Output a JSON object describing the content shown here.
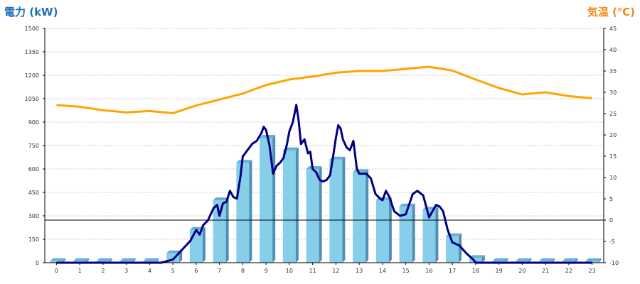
{
  "chart_data": {
    "type": "bar+line",
    "left_axis": {
      "label": "電力 (kW)",
      "min": 0,
      "max": 1500,
      "ticks": [
        0,
        150,
        300,
        450,
        600,
        750,
        900,
        1050,
        1200,
        1350,
        1500
      ]
    },
    "right_axis": {
      "label": "気温 (℃)",
      "min": -10,
      "max": 45,
      "ticks": [
        -10,
        -5,
        0,
        5,
        10,
        15,
        20,
        25,
        30,
        35,
        40,
        45
      ]
    },
    "x_categories": [
      "0",
      "1",
      "2",
      "3",
      "4",
      "5",
      "6",
      "7",
      "8",
      "9",
      "10",
      "11",
      "12",
      "13",
      "14",
      "15",
      "16",
      "17",
      "18",
      "19",
      "20",
      "21",
      "22",
      "23"
    ],
    "grid": true,
    "bars": {
      "axis": "left",
      "color": "#87ceeb",
      "values": [
        10,
        10,
        10,
        10,
        10,
        60,
        210,
        400,
        640,
        800,
        720,
        600,
        660,
        580,
        400,
        360,
        340,
        170,
        30,
        10,
        10,
        10,
        10,
        10
      ]
    },
    "power_line": {
      "axis": "left",
      "color": "#000080",
      "points": [
        [
          0,
          0
        ],
        [
          1,
          0
        ],
        [
          2,
          0
        ],
        [
          3,
          0
        ],
        [
          4,
          0
        ],
        [
          4.5,
          0
        ],
        [
          5,
          20
        ],
        [
          5.25,
          60
        ],
        [
          5.5,
          100
        ],
        [
          5.75,
          140
        ],
        [
          6,
          210
        ],
        [
          6.15,
          180
        ],
        [
          6.3,
          240
        ],
        [
          6.5,
          270
        ],
        [
          6.75,
          350
        ],
        [
          6.9,
          370
        ],
        [
          7,
          300
        ],
        [
          7.15,
          380
        ],
        [
          7.3,
          390
        ],
        [
          7.45,
          460
        ],
        [
          7.6,
          420
        ],
        [
          7.75,
          410
        ],
        [
          7.9,
          550
        ],
        [
          8,
          680
        ],
        [
          8.2,
          720
        ],
        [
          8.4,
          760
        ],
        [
          8.6,
          780
        ],
        [
          8.8,
          830
        ],
        [
          8.9,
          870
        ],
        [
          9,
          850
        ],
        [
          9.15,
          750
        ],
        [
          9.3,
          570
        ],
        [
          9.45,
          620
        ],
        [
          9.6,
          640
        ],
        [
          9.75,
          670
        ],
        [
          9.9,
          760
        ],
        [
          10,
          840
        ],
        [
          10.15,
          900
        ],
        [
          10.3,
          1010
        ],
        [
          10.4,
          910
        ],
        [
          10.5,
          760
        ],
        [
          10.65,
          790
        ],
        [
          10.8,
          700
        ],
        [
          10.9,
          710
        ],
        [
          11,
          600
        ],
        [
          11.15,
          580
        ],
        [
          11.3,
          530
        ],
        [
          11.45,
          520
        ],
        [
          11.6,
          530
        ],
        [
          11.75,
          560
        ],
        [
          11.9,
          700
        ],
        [
          12,
          800
        ],
        [
          12.1,
          880
        ],
        [
          12.2,
          860
        ],
        [
          12.3,
          790
        ],
        [
          12.45,
          740
        ],
        [
          12.6,
          720
        ],
        [
          12.75,
          780
        ],
        [
          12.9,
          600
        ],
        [
          13,
          570
        ],
        [
          13.3,
          570
        ],
        [
          13.5,
          540
        ],
        [
          13.7,
          440
        ],
        [
          13.9,
          410
        ],
        [
          14,
          400
        ],
        [
          14.15,
          460
        ],
        [
          14.3,
          420
        ],
        [
          14.5,
          330
        ],
        [
          14.75,
          300
        ],
        [
          15,
          310
        ],
        [
          15.3,
          440
        ],
        [
          15.5,
          460
        ],
        [
          15.75,
          430
        ],
        [
          16,
          290
        ],
        [
          16.15,
          330
        ],
        [
          16.3,
          370
        ],
        [
          16.45,
          360
        ],
        [
          16.6,
          330
        ],
        [
          16.8,
          210
        ],
        [
          17,
          130
        ],
        [
          17.3,
          110
        ],
        [
          17.6,
          60
        ],
        [
          17.9,
          20
        ],
        [
          18,
          0
        ],
        [
          19,
          0
        ],
        [
          20,
          0
        ],
        [
          21,
          0
        ],
        [
          22,
          0
        ],
        [
          23,
          0
        ]
      ]
    },
    "temp_line": {
      "axis": "right",
      "color": "#ffa500",
      "points": [
        [
          0,
          27
        ],
        [
          1,
          26.6
        ],
        [
          2,
          25.8
        ],
        [
          3,
          25.3
        ],
        [
          4,
          25.6
        ],
        [
          5,
          25.1
        ],
        [
          6,
          26.9
        ],
        [
          7,
          28.3
        ],
        [
          8,
          29.7
        ],
        [
          9,
          31.7
        ],
        [
          10,
          33
        ],
        [
          11,
          33.7
        ],
        [
          12,
          34.6
        ],
        [
          13,
          35
        ],
        [
          14,
          35
        ],
        [
          15,
          35.5
        ],
        [
          16,
          36
        ],
        [
          17,
          35.1
        ],
        [
          18,
          33
        ],
        [
          19,
          31
        ],
        [
          20,
          29.5
        ],
        [
          21,
          30
        ],
        [
          22,
          29.1
        ],
        [
          23,
          28.6
        ]
      ]
    },
    "reference_line": {
      "axis": "right",
      "value": 0,
      "color": "#000000"
    }
  }
}
